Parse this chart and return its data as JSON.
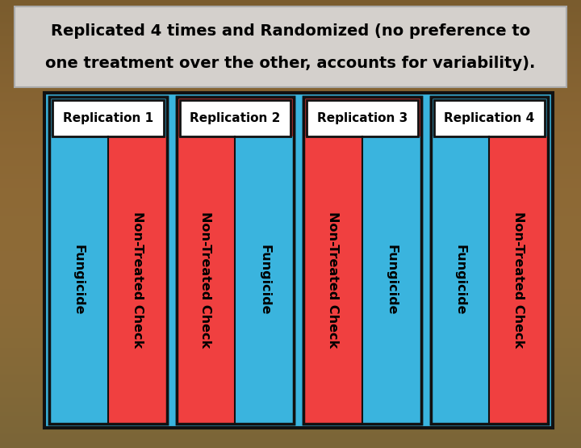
{
  "title_line1": "Replicated 4 times and Randomized (no preference to",
  "title_line2": "one treatment over the other, accounts for variability).",
  "title_fontsize": 14,
  "title_bg": "#d4d0cc",
  "background_color": "#7a5c2e",
  "main_box_bg": "#3ab4de",
  "main_box_edge": "#111111",
  "replications": [
    "Replication 1",
    "Replication 2",
    "Replication 3",
    "Replication 4"
  ],
  "replication_label_bg": "#ffffff",
  "replication_label_edge": "#111111",
  "replication_fontsize": 11,
  "plots": [
    [
      "Fungicide",
      "Non-Treated Check"
    ],
    [
      "Non-Treated Check",
      "Fungicide"
    ],
    [
      "Non-Treated Check",
      "Fungicide"
    ],
    [
      "Fungicide",
      "Non-Treated Check"
    ]
  ],
  "fungicide_color": "#3ab4de",
  "ntc_color": "#f04040",
  "strip_label_fontsize": 11.5,
  "strip_label_color": "#000000",
  "fig_width": 7.2,
  "fig_height": 5.55,
  "dpi": 100
}
